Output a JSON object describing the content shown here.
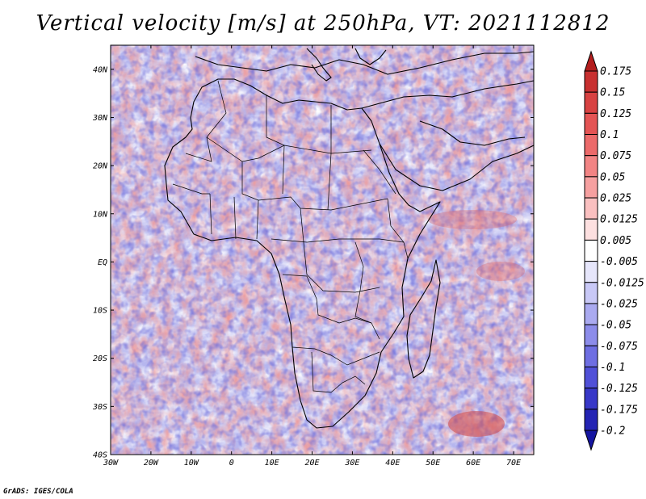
{
  "title": "Vertical velocity [m/s] at 250hPa, VT: 2021112812",
  "credit": "GrADS: IGES/COLA",
  "map": {
    "lon_range": [
      -30,
      75
    ],
    "lat_range": [
      -40,
      45
    ],
    "lat_labels": [
      "40N",
      "30N",
      "20N",
      "10N",
      "EQ",
      "10S",
      "20S",
      "30S",
      "40S"
    ],
    "lat_values": [
      40,
      30,
      20,
      10,
      0,
      -10,
      -20,
      -30,
      -40
    ],
    "lon_labels": [
      "30W",
      "20W",
      "10W",
      "0",
      "10E",
      "20E",
      "30E",
      "40E",
      "50E",
      "60E",
      "70E"
    ],
    "lon_values": [
      -30,
      -20,
      -10,
      0,
      10,
      20,
      30,
      40,
      50,
      60,
      70
    ]
  },
  "colorbar": {
    "labels": [
      "0.175",
      "0.15",
      "0.125",
      "0.1",
      "0.075",
      "0.05",
      "0.025",
      "0.0125",
      "0.005",
      "-0.005",
      "-0.0125",
      "-0.025",
      "-0.05",
      "-0.075",
      "-0.1",
      "-0.125",
      "-0.175",
      "-0.2"
    ],
    "colors": [
      "#b31d1d",
      "#c83030",
      "#d84242",
      "#e45454",
      "#ec6a6a",
      "#f28484",
      "#f6a0a0",
      "#fac0c0",
      "#fde0e0",
      "#ffffff",
      "#e6e6fb",
      "#c8c8f6",
      "#aaaaf0",
      "#8c8cea",
      "#6e6ee2",
      "#5050d8",
      "#3838c8",
      "#2424b4",
      "#1515a0"
    ]
  }
}
